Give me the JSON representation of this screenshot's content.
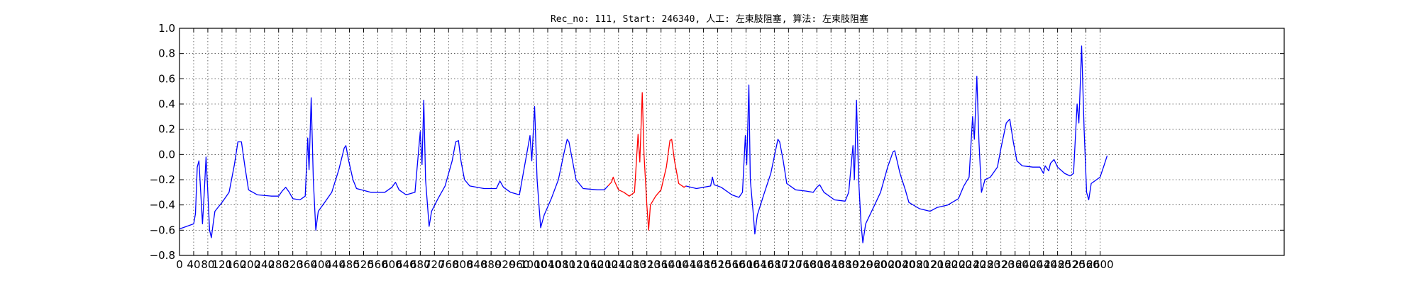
{
  "chart_data": {
    "type": "line",
    "title": "Rec_no: 111, Start: 246340, 人工: 左束肢阻塞, 算法: 左束肢阻塞",
    "xlabel": "",
    "ylabel": "",
    "xlim": [
      0,
      3120
    ],
    "ylim": [
      -0.8,
      1.0
    ],
    "grid": true,
    "x_ticks": [
      0,
      40,
      80,
      120,
      160,
      200,
      240,
      280,
      320,
      360,
      400,
      440,
      480,
      520,
      560,
      600,
      640,
      680,
      720,
      760,
      800,
      840,
      880,
      920,
      960,
      1000,
      1040,
      1080,
      1120,
      1160,
      1200,
      1240,
      1280,
      1320,
      1360,
      1400,
      1440,
      1480,
      1520,
      1560,
      1600,
      1640,
      1680,
      1720,
      1760,
      1800,
      1840,
      1880,
      1920,
      1960,
      2000,
      2040,
      2080,
      2120,
      2160,
      2200,
      2240,
      2280,
      2320,
      2360,
      2400,
      2440,
      2480,
      2520,
      2560,
      2600
    ],
    "x_tick_labels_drawn": [
      "0",
      "40",
      "80",
      "120",
      "160",
      "200",
      "240",
      "280",
      "320",
      "360",
      "400",
      "440",
      "480",
      "520",
      "560",
      "600",
      "640",
      "680",
      "720",
      "760",
      "800",
      "840",
      "880",
      "920",
      "960",
      "1000",
      "1040",
      "1080",
      "1120",
      "1160",
      "1200",
      "1240",
      "1280",
      "1320",
      "1360",
      "1400",
      "1440",
      "1480",
      "1520",
      "1560",
      "1600",
      "1640",
      "1680",
      "1720",
      "1760",
      "1800",
      "1840",
      "1880",
      "1920",
      "1960",
      "2000",
      "2040",
      "2080",
      "2120",
      "2160",
      "2200",
      "2240",
      "2280",
      "2320",
      "2360",
      "2400",
      "2440",
      "2480",
      "2520",
      "2560",
      "2600"
    ],
    "y_ticks": [
      1.0,
      0.8,
      0.6,
      0.4,
      0.2,
      0.0,
      -0.2,
      -0.4,
      -0.6,
      -0.8
    ],
    "y_tick_labels": [
      "1.0",
      "0.8",
      "0.6",
      "0.4",
      "0.2",
      "0.0",
      "−0.2",
      "−0.4",
      "−0.6",
      "−0.8"
    ],
    "series": [
      {
        "color": "#0000ff",
        "segments": [
          [
            [
              0,
              -0.59
            ],
            [
              20,
              -0.57
            ],
            [
              40,
              -0.55
            ],
            [
              45,
              -0.47
            ],
            [
              50,
              -0.1
            ],
            [
              55,
              -0.05
            ],
            [
              60,
              -0.3
            ],
            [
              65,
              -0.55
            ],
            [
              70,
              -0.3
            ],
            [
              75,
              -0.02
            ],
            [
              80,
              -0.3
            ],
            [
              85,
              -0.6
            ],
            [
              90,
              -0.66
            ],
            [
              95,
              -0.55
            ],
            [
              100,
              -0.45
            ],
            [
              120,
              -0.38
            ],
            [
              140,
              -0.3
            ],
            [
              155,
              -0.08
            ],
            [
              165,
              0.1
            ],
            [
              175,
              0.1
            ],
            [
              185,
              -0.1
            ],
            [
              195,
              -0.28
            ],
            [
              220,
              -0.32
            ],
            [
              260,
              -0.33
            ],
            [
              280,
              -0.33
            ],
            [
              290,
              -0.29
            ],
            [
              300,
              -0.26
            ],
            [
              310,
              -0.3
            ],
            [
              320,
              -0.35
            ],
            [
              340,
              -0.36
            ],
            [
              355,
              -0.33
            ],
            [
              362,
              0.13
            ],
            [
              366,
              -0.12
            ],
            [
              372,
              0.45
            ],
            [
              378,
              -0.2
            ],
            [
              385,
              -0.6
            ],
            [
              392,
              -0.45
            ],
            [
              410,
              -0.38
            ],
            [
              430,
              -0.3
            ],
            [
              450,
              -0.12
            ],
            [
              465,
              0.05
            ],
            [
              470,
              0.07
            ],
            [
              478,
              -0.05
            ],
            [
              490,
              -0.2
            ],
            [
              500,
              -0.27
            ],
            [
              540,
              -0.3
            ],
            [
              580,
              -0.3
            ],
            [
              600,
              -0.26
            ],
            [
              610,
              -0.22
            ],
            [
              620,
              -0.28
            ],
            [
              640,
              -0.32
            ],
            [
              665,
              -0.3
            ],
            [
              680,
              0.18
            ],
            [
              685,
              -0.08
            ],
            [
              690,
              0.43
            ],
            [
              695,
              -0.2
            ],
            [
              705,
              -0.57
            ],
            [
              712,
              -0.45
            ],
            [
              730,
              -0.35
            ],
            [
              750,
              -0.25
            ],
            [
              770,
              -0.05
            ],
            [
              780,
              0.1
            ],
            [
              788,
              0.11
            ],
            [
              795,
              -0.05
            ],
            [
              805,
              -0.2
            ],
            [
              820,
              -0.25
            ],
            [
              860,
              -0.27
            ],
            [
              895,
              -0.27
            ],
            [
              905,
              -0.21
            ],
            [
              915,
              -0.26
            ],
            [
              935,
              -0.3
            ],
            [
              960,
              -0.32
            ],
            [
              990,
              0.15
            ],
            [
              995,
              -0.05
            ],
            [
              1003,
              0.38
            ],
            [
              1010,
              -0.2
            ],
            [
              1020,
              -0.58
            ],
            [
              1030,
              -0.48
            ],
            [
              1050,
              -0.35
            ],
            [
              1070,
              -0.2
            ],
            [
              1085,
              0.0
            ],
            [
              1095,
              0.12
            ],
            [
              1100,
              0.1
            ],
            [
              1110,
              -0.05
            ],
            [
              1120,
              -0.2
            ],
            [
              1140,
              -0.27
            ],
            [
              1180,
              -0.28
            ],
            [
              1200,
              -0.28
            ],
            [
              1210,
              -0.25
            ]
          ],
          [
            [
              1430,
              -0.25
            ],
            [
              1460,
              -0.27
            ],
            [
              1480,
              -0.26
            ],
            [
              1500,
              -0.25
            ],
            [
              1505,
              -0.18
            ],
            [
              1510,
              -0.24
            ],
            [
              1530,
              -0.26
            ],
            [
              1560,
              -0.32
            ],
            [
              1580,
              -0.34
            ],
            [
              1590,
              -0.3
            ],
            [
              1598,
              0.15
            ],
            [
              1602,
              -0.08
            ],
            [
              1608,
              0.55
            ],
            [
              1612,
              -0.2
            ],
            [
              1620,
              -0.45
            ],
            [
              1625,
              -0.63
            ],
            [
              1632,
              -0.48
            ],
            [
              1650,
              -0.32
            ],
            [
              1670,
              -0.15
            ],
            [
              1690,
              0.12
            ],
            [
              1695,
              0.1
            ],
            [
              1705,
              -0.05
            ],
            [
              1715,
              -0.23
            ],
            [
              1740,
              -0.28
            ],
            [
              1770,
              -0.29
            ],
            [
              1790,
              -0.3
            ],
            [
              1800,
              -0.26
            ],
            [
              1808,
              -0.24
            ],
            [
              1820,
              -0.3
            ],
            [
              1850,
              -0.36
            ],
            [
              1880,
              -0.37
            ],
            [
              1890,
              -0.3
            ],
            [
              1902,
              0.07
            ],
            [
              1906,
              -0.2
            ],
            [
              1912,
              0.43
            ],
            [
              1918,
              -0.2
            ],
            [
              1925,
              -0.55
            ],
            [
              1930,
              -0.7
            ],
            [
              1938,
              -0.55
            ],
            [
              1960,
              -0.42
            ],
            [
              1980,
              -0.3
            ],
            [
              2000,
              -0.1
            ],
            [
              2015,
              0.02
            ],
            [
              2020,
              0.03
            ],
            [
              2035,
              -0.15
            ],
            [
              2050,
              -0.28
            ],
            [
              2060,
              -0.38
            ],
            [
              2090,
              -0.43
            ],
            [
              2120,
              -0.45
            ],
            [
              2140,
              -0.42
            ],
            [
              2170,
              -0.4
            ],
            [
              2200,
              -0.35
            ],
            [
              2215,
              -0.25
            ],
            [
              2230,
              -0.18
            ],
            [
              2240,
              0.3
            ],
            [
              2245,
              0.12
            ],
            [
              2252,
              0.62
            ],
            [
              2258,
              0.1
            ],
            [
              2265,
              -0.3
            ],
            [
              2275,
              -0.2
            ],
            [
              2290,
              -0.18
            ],
            [
              2310,
              -0.1
            ],
            [
              2320,
              0.05
            ],
            [
              2335,
              0.25
            ],
            [
              2345,
              0.28
            ],
            [
              2355,
              0.1
            ],
            [
              2365,
              -0.05
            ],
            [
              2380,
              -0.09
            ],
            [
              2410,
              -0.1
            ],
            [
              2430,
              -0.1
            ],
            [
              2440,
              -0.15
            ],
            [
              2445,
              -0.09
            ],
            [
              2455,
              -0.13
            ],
            [
              2460,
              -0.07
            ],
            [
              2470,
              -0.04
            ],
            [
              2480,
              -0.1
            ],
            [
              2500,
              -0.15
            ],
            [
              2515,
              -0.17
            ],
            [
              2525,
              -0.15
            ],
            [
              2535,
              0.4
            ],
            [
              2540,
              0.25
            ],
            [
              2548,
              0.86
            ],
            [
              2555,
              0.2
            ],
            [
              2562,
              -0.3
            ],
            [
              2568,
              -0.36
            ],
            [
              2575,
              -0.23
            ],
            [
              2590,
              -0.2
            ],
            [
              2600,
              -0.18
            ],
            [
              2612,
              -0.08
            ],
            [
              2620,
              -0.01
            ]
          ]
        ]
      },
      {
        "color": "#ff0000",
        "segments": [
          [
            [
              1210,
              -0.25
            ],
            [
              1220,
              -0.22
            ],
            [
              1225,
              -0.18
            ],
            [
              1230,
              -0.22
            ],
            [
              1240,
              -0.28
            ],
            [
              1255,
              -0.3
            ],
            [
              1270,
              -0.33
            ],
            [
              1285,
              -0.3
            ],
            [
              1295,
              0.16
            ],
            [
              1300,
              -0.06
            ],
            [
              1307,
              0.49
            ],
            [
              1312,
              0.0
            ],
            [
              1320,
              -0.4
            ],
            [
              1325,
              -0.6
            ],
            [
              1330,
              -0.4
            ],
            [
              1345,
              -0.33
            ],
            [
              1360,
              -0.28
            ],
            [
              1375,
              -0.1
            ],
            [
              1385,
              0.11
            ],
            [
              1390,
              0.12
            ],
            [
              1398,
              -0.05
            ],
            [
              1410,
              -0.23
            ],
            [
              1425,
              -0.26
            ],
            [
              1430,
              -0.25
            ]
          ]
        ]
      }
    ]
  }
}
